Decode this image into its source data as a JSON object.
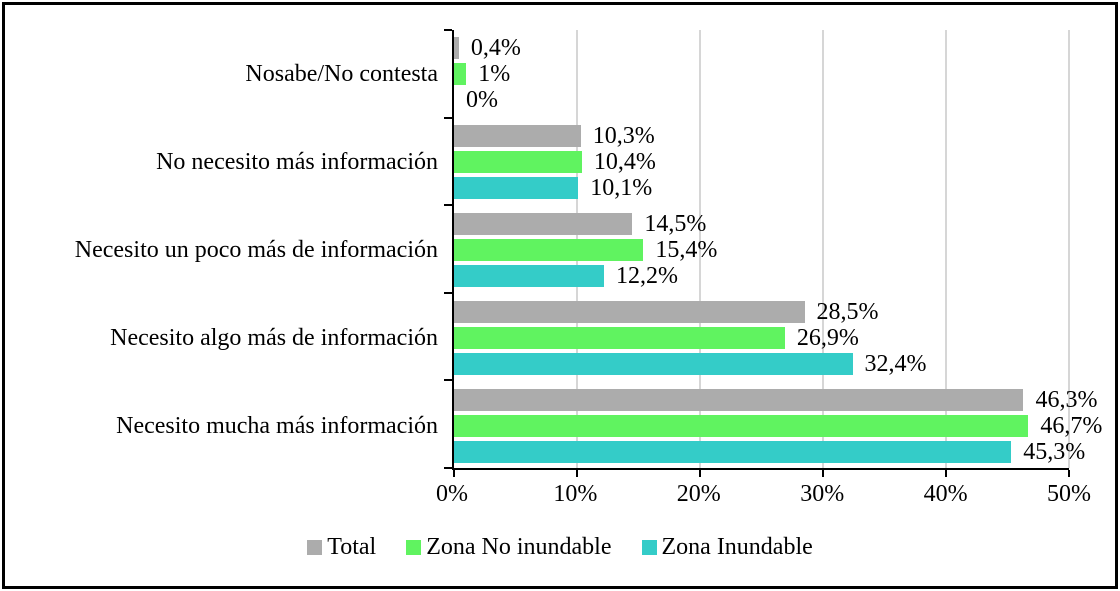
{
  "frame": {
    "background": "#FFFFFF",
    "border_color": "#000000"
  },
  "chart_data": {
    "type": "bar",
    "orientation": "horizontal",
    "title": "",
    "categories": [
      "Nosabe/No contesta",
      "No necesito más información",
      "Necesito un poco más de información",
      "Necesito algo más de información",
      "Necesito mucha más información"
    ],
    "categories_order_note": "listed top to bottom as displayed",
    "series": [
      {
        "name": "Total",
        "color": "#ACACAC",
        "values": [
          0.4,
          10.3,
          14.5,
          28.5,
          46.3
        ],
        "labels": [
          "0,4%",
          "10,3%",
          "14,5%",
          "28,5%",
          "46,3%"
        ]
      },
      {
        "name": "Zona No inundable",
        "color": "#60F360",
        "values": [
          1,
          10.4,
          15.4,
          26.9,
          46.7
        ],
        "labels": [
          "1%",
          "10,4%",
          "15,4%",
          "26,9%",
          "46,7%"
        ]
      },
      {
        "name": "Zona Inundable",
        "color": "#34CCC8",
        "values": [
          0,
          10.1,
          12.2,
          32.4,
          45.3
        ],
        "labels": [
          "0%",
          "10,1%",
          "12,2%",
          "32,4%",
          "45,3%"
        ]
      }
    ],
    "x_axis": {
      "min": 0,
      "max": 50,
      "tick_step": 10,
      "tick_labels": [
        "0%",
        "10%",
        "20%",
        "30%",
        "40%",
        "50%"
      ]
    },
    "grid": true,
    "gridline_color": "#D6D6D6",
    "axis_color": "#000000",
    "text_color": "#000000",
    "legend": {
      "position": "bottom",
      "items": [
        "Total",
        "Zona No inundable",
        "Zona Inundable"
      ]
    }
  }
}
